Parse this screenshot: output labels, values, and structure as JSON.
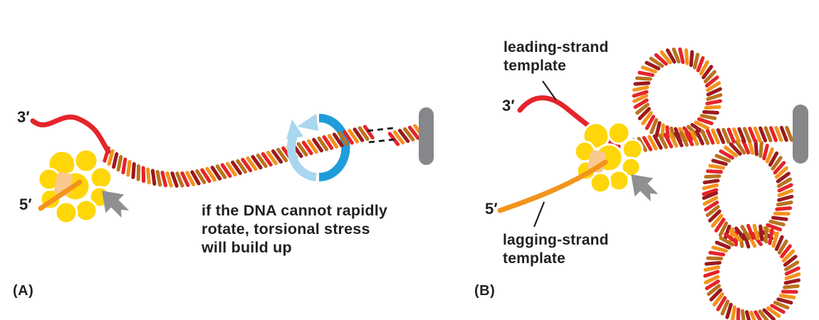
{
  "figure": {
    "panel_a": {
      "label": "(A)",
      "three_prime_label": "3′",
      "five_prime_label": "5′",
      "caption": "if the DNA cannot rapidly\nrotate, torsional stress\nwill build up"
    },
    "panel_b": {
      "label": "(B)",
      "three_prime_label": "3′",
      "five_prime_label": "5′",
      "leading_strand_label": "leading-strand\ntemplate",
      "lagging_strand_label": "lagging-strand\ntemplate"
    },
    "icons": {
      "rotation_arrow": "circular-rotation-arrow",
      "movement_arrow": "block-arrow-up-left",
      "anchor": "gray-anchor-capsule"
    },
    "colors": {
      "strand_red": "#e5242b",
      "strand_orange": "#f3941c",
      "strand_dark_red": "#9c1a1e",
      "strand_dark_orange": "#b9741d",
      "protein_yellow": "#ffd60a",
      "protein_window": "#f9c98e",
      "protein_outline": "#ffffff",
      "arrow_gray": "#8e9092",
      "anchor_gray": "#85878a",
      "rotation_blue": "#1f9cd9",
      "rotation_blue_light": "#a9d7f0",
      "text_black": "#231f20"
    }
  }
}
